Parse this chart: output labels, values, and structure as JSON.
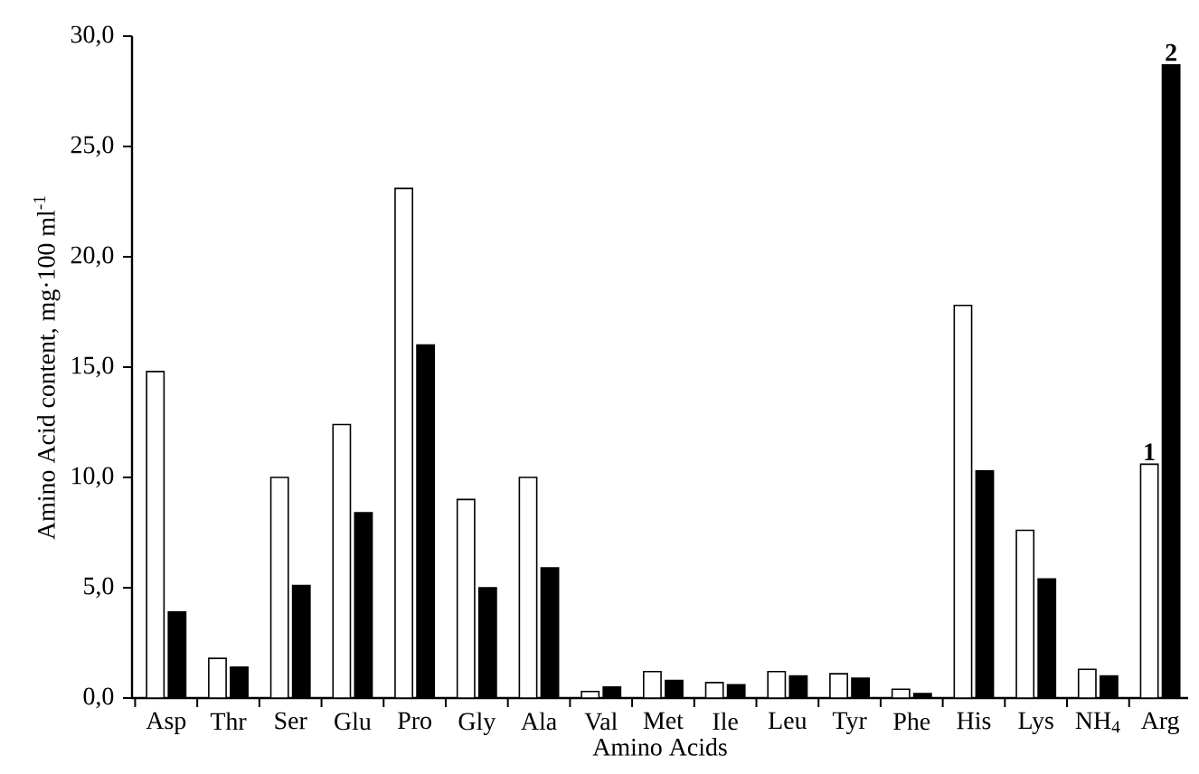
{
  "chart_data": {
    "type": "bar",
    "xlabel": "Amino Acids",
    "ylabel": "Amino Acid content, mg·100 ml$^{-1}$",
    "categories": [
      "Asp",
      "Thr",
      "Ser",
      "Glu",
      "Pro",
      "Gly",
      "Ala",
      "Val",
      "Met",
      "Ile",
      "Leu",
      "Tyr",
      "Phe",
      "His",
      "Lys",
      "NH$_{4}$",
      "Arg"
    ],
    "series": [
      {
        "name": "1",
        "color": "#ffffff",
        "values": [
          14.8,
          1.8,
          10.0,
          12.4,
          23.1,
          9.0,
          10.0,
          0.3,
          1.2,
          0.7,
          1.2,
          1.1,
          0.4,
          17.8,
          7.6,
          1.3,
          10.6
        ]
      },
      {
        "name": "2",
        "color": "#000000",
        "values": [
          3.9,
          1.4,
          5.1,
          8.4,
          16.0,
          5.0,
          5.9,
          0.5,
          0.8,
          0.6,
          1.0,
          0.9,
          0.2,
          10.3,
          5.4,
          1.0,
          28.7
        ]
      }
    ],
    "ylim": [
      0,
      30
    ],
    "yticks": [
      {
        "value": 0,
        "label": "0,0"
      },
      {
        "value": 5,
        "label": "5,0"
      },
      {
        "value": 10,
        "label": "10,0"
      },
      {
        "value": 15,
        "label": "15,0"
      },
      {
        "value": 20,
        "label": "20,0"
      },
      {
        "value": 25,
        "label": "25,0"
      },
      {
        "value": 30,
        "label": "30,0"
      }
    ],
    "grid": false
  }
}
